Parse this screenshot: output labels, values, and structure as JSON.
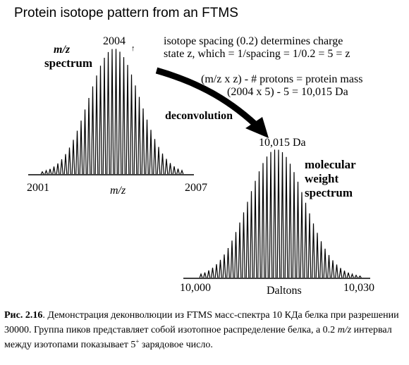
{
  "figure": {
    "title": "Protein isotope pattern from an FTMS",
    "mz_spectrum": {
      "label_line1": "m/z",
      "label_line2": "spectrum",
      "peak_label": "2004",
      "peak_mark": "↑",
      "x_min_label": "2001",
      "x_max_label": "2007",
      "x_axis_label": "m/z"
    },
    "annotation": {
      "line1": "isotope spacing (0.2) determines charge",
      "line2": "state z, which = 1/spacing = 1/0.2 = 5 = z",
      "line3": "(m/z x z) - # protons = protein mass",
      "line4": "(2004 x 5) - 5  = 10,015 Da"
    },
    "arrow_label": "deconvolution",
    "mw_spectrum": {
      "peak_label": "10,015 Da",
      "label_line1": "molecular",
      "label_line2": "weight",
      "label_line3": "spectrum",
      "x_min_label": "10,000",
      "x_max_label": "10,030",
      "x_axis_label": "Daltons"
    }
  },
  "caption": {
    "prefix": "Рис. 2.16",
    "text_part1": ". Демонстрация деконволюции из FTMS масс-спектра 10 КДа белка при разрешении 30000. Группа пиков представляет собой изотопное распределение белка, а 0.2 ",
    "italic": "m/z",
    "text_part2": " интервал между изотопами показывает 5",
    "superscript": "+",
    "text_part3": " зарядовое число."
  }
}
